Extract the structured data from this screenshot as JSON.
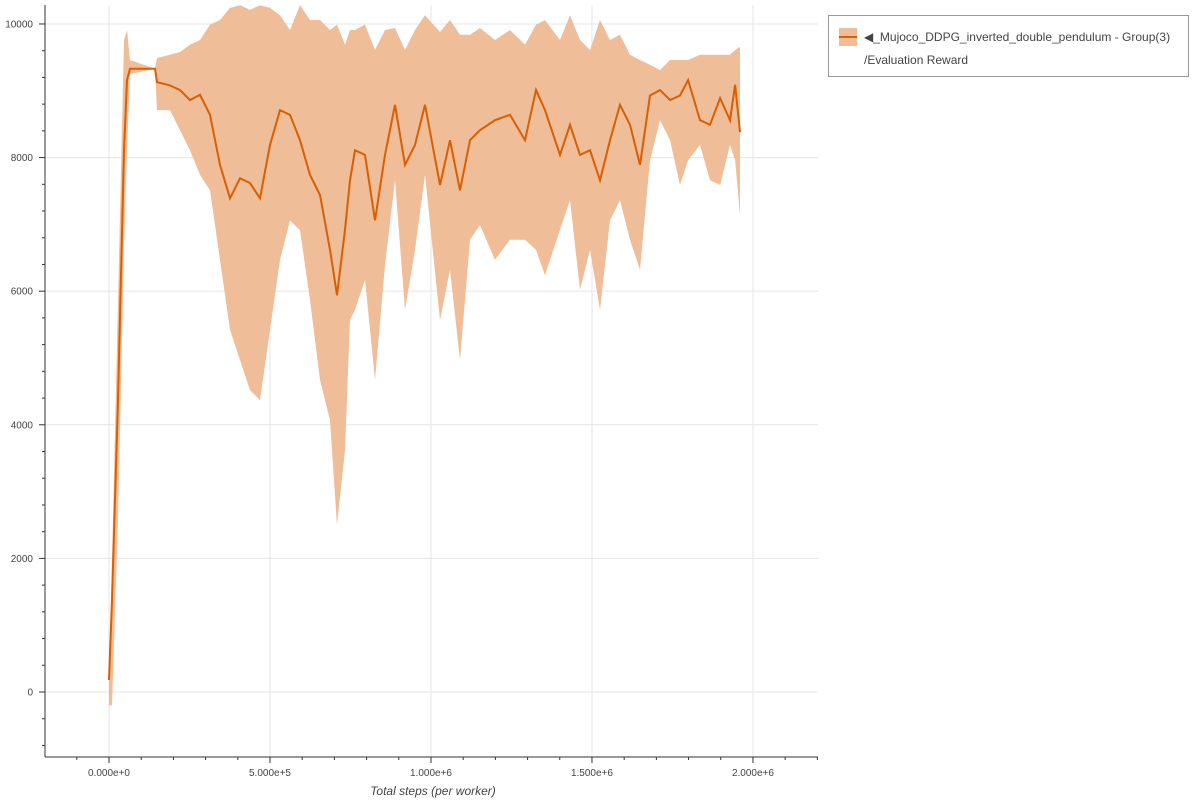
{
  "chart_data": {
    "type": "line",
    "title": "",
    "xlabel": "Total steps (per worker)",
    "ylabel": "",
    "xlim": [
      -198800,
      2202000
    ],
    "ylim": [
      -973,
      10284
    ],
    "x_ticks": [
      0,
      500000,
      1000000,
      1500000,
      2000000
    ],
    "x_tick_labels": [
      "0.000e+0",
      "5.000e+5",
      "1.000e+6",
      "1.500e+6",
      "2.000e+6"
    ],
    "y_ticks": [
      0,
      2000,
      4000,
      6000,
      8000,
      10000
    ],
    "y_tick_labels": [
      "0",
      "2000",
      "4000",
      "6000",
      "8000",
      "10000"
    ],
    "grid": true,
    "legend_position": "outside-top-right",
    "colors": {
      "line": "#d95f02",
      "band": "#efbd98"
    },
    "series": [
      {
        "name": "◀_Mujoco_DDPG_inverted_double_pendulum - Group(3) /Evaluation Reward",
        "x": [
          0,
          9300,
          28000,
          46600,
          55900,
          65200,
          142900,
          149100,
          189500,
          220500,
          251600,
          282600,
          313700,
          344800,
          375800,
          406900,
          437900,
          469000,
          500100,
          531100,
          562200,
          593200,
          624300,
          655400,
          686400,
          708200,
          733000,
          748600,
          764100,
          795200,
          826200,
          857300,
          888300,
          919400,
          950400,
          981500,
          1028100,
          1059100,
          1090200,
          1121300,
          1152300,
          1198900,
          1245500,
          1292100,
          1326300,
          1354200,
          1400800,
          1431900,
          1462900,
          1494000,
          1525000,
          1556100,
          1587200,
          1618200,
          1649300,
          1680300,
          1711400,
          1742500,
          1773500,
          1798400,
          1835600,
          1866700,
          1897800,
          1928800,
          1944400,
          1959900
        ],
        "mean": [
          180,
          1380,
          4370,
          8110,
          9160,
          9330,
          9330,
          9130,
          9080,
          9010,
          8860,
          8940,
          8640,
          7890,
          7390,
          7690,
          7620,
          7390,
          8190,
          8710,
          8640,
          8260,
          7740,
          7440,
          6620,
          5940,
          6920,
          7660,
          8110,
          8040,
          7060,
          8040,
          8790,
          7890,
          8190,
          8790,
          7590,
          8260,
          7510,
          8260,
          8410,
          8560,
          8640,
          8260,
          9010,
          8710,
          8040,
          8490,
          8040,
          8110,
          7660,
          8260,
          8790,
          8490,
          7890,
          8930,
          9010,
          8860,
          8930,
          9160,
          8560,
          8490,
          8890,
          8560,
          9090,
          8380
        ],
        "upper": [
          180,
          1980,
          5840,
          9760,
          9910,
          9460,
          9330,
          9490,
          9540,
          9580,
          9690,
          9760,
          9990,
          10060,
          10240,
          10280,
          10210,
          10280,
          10240,
          10130,
          9910,
          10280,
          10060,
          10060,
          9910,
          9990,
          9690,
          9910,
          9910,
          9990,
          9610,
          9910,
          9940,
          9610,
          9910,
          10130,
          9880,
          10060,
          9840,
          9840,
          9940,
          9760,
          9910,
          9690,
          9990,
          10060,
          9760,
          10130,
          9760,
          9610,
          10060,
          9760,
          9840,
          9540,
          9460,
          9390,
          9310,
          9460,
          9460,
          9460,
          9540,
          9540,
          9540,
          9540,
          9610,
          9660
        ],
        "lower": [
          -200,
          -200,
          2590,
          6620,
          8110,
          9250,
          9330,
          8710,
          8710,
          8410,
          8110,
          7740,
          7510,
          6470,
          5420,
          4970,
          4520,
          4370,
          5420,
          6470,
          7060,
          6910,
          5870,
          4670,
          4070,
          2500,
          3620,
          5570,
          5720,
          6170,
          4670,
          6390,
          7660,
          5720,
          6620,
          7740,
          5570,
          6320,
          4970,
          6770,
          6990,
          6470,
          6770,
          6770,
          6620,
          6240,
          6920,
          7360,
          6020,
          6620,
          5720,
          7060,
          7360,
          6770,
          6320,
          7960,
          8560,
          8260,
          7590,
          7960,
          8190,
          7660,
          7590,
          8190,
          7960,
          7140
        ]
      }
    ]
  },
  "legend": {
    "line1": "◀_Mujoco_DDPG_inverted_double_pendulum - Group(3)",
    "line2": "/Evaluation Reward"
  }
}
